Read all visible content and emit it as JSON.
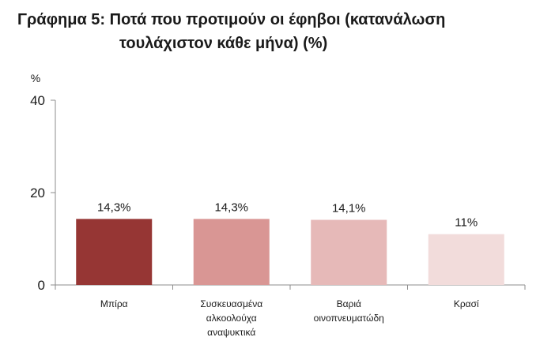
{
  "title_line1": "Γράφημα 5: Ποτά που προτιμούν οι έφηβοι (κατανάλωση",
  "title_line2": "τουλάχιστον κάθε μήνα) (%)",
  "chart_data": {
    "type": "bar",
    "title": "Γράφημα 5: Ποτά που προτιμούν οι έφηβοι (κατανάλωση τουλάχιστον κάθε μήνα) (%)",
    "ylabel": "%",
    "ylim": [
      0,
      40
    ],
    "yticks": [
      0,
      20,
      40
    ],
    "categories": [
      [
        "Μπίρα"
      ],
      [
        "Συσκευασμένα",
        "αλκοολούχα",
        "αναψυκτικά"
      ],
      [
        "Βαριά",
        "οινοπνευματώδη"
      ],
      [
        "Κρασί"
      ]
    ],
    "values": [
      14.3,
      14.3,
      14.1,
      11
    ],
    "data_labels": [
      "14,3%",
      "14,3%",
      "14,1%",
      "11%"
    ],
    "colors": [
      "#963634",
      "#d99694",
      "#e6b9b8",
      "#f2dcdb"
    ],
    "grid": false,
    "legend": "none"
  }
}
